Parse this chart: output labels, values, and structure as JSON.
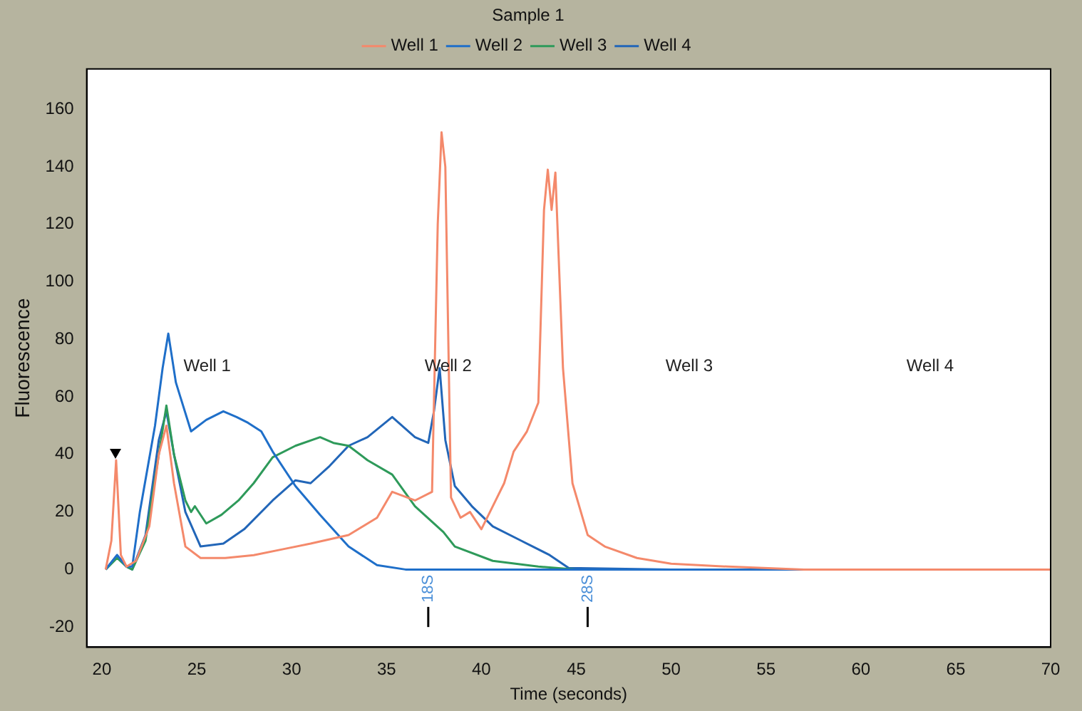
{
  "chart_data": {
    "type": "line",
    "title": "Sample 1",
    "xlabel": "Time (seconds)",
    "ylabel": "Fluorescence",
    "xlim": [
      19.2,
      70
    ],
    "xticks": [
      20,
      25,
      30,
      35,
      40,
      45,
      50,
      55,
      60,
      65,
      70
    ],
    "ylim": [
      -27,
      174
    ],
    "yticks": [
      -20,
      0,
      20,
      40,
      60,
      80,
      100,
      120,
      140,
      160
    ],
    "grid": false,
    "legend": "top",
    "marker": "none",
    "line_style": "solid",
    "series": [
      {
        "name": "Well 1",
        "color": "#f4896b",
        "x": [
          20.2,
          20.5,
          20.75,
          21.0,
          21.3,
          21.8,
          22.5,
          23.0,
          23.4,
          23.8,
          24.4,
          25.2,
          26.5,
          28,
          29.5,
          31,
          33,
          34.5,
          35.3,
          36.5,
          37.4,
          37.7,
          37.9,
          38.1,
          38.4,
          38.9,
          39.4,
          40,
          40.6,
          41.2,
          41.7,
          42.4,
          43.0,
          43.3,
          43.5,
          43.7,
          43.9,
          44.3,
          44.8,
          45.6,
          46.5,
          48.2,
          50,
          53,
          57,
          62,
          70
        ],
        "values": [
          0,
          10,
          38,
          5,
          1,
          3,
          15,
          40,
          50,
          30,
          8,
          4,
          4,
          5,
          7,
          9,
          12,
          18,
          27,
          24,
          27,
          120,
          152,
          140,
          25,
          18,
          20,
          14,
          22,
          30,
          41,
          48,
          58,
          125,
          139,
          125,
          138,
          70,
          30,
          12,
          8,
          4,
          2,
          1,
          0,
          0,
          0
        ]
      },
      {
        "name": "Well 2",
        "color": "#1f6fc9",
        "x": [
          20.2,
          20.8,
          21.3,
          21.6,
          22,
          22.8,
          23.2,
          23.5,
          23.9,
          24.7,
          25.5,
          26.4,
          27.1,
          27.7,
          28.4,
          29,
          30.2,
          31.5,
          33,
          34.5,
          36,
          40,
          50,
          60,
          70
        ],
        "values": [
          0,
          5,
          1,
          1,
          20,
          50,
          70,
          82,
          65,
          48,
          52,
          55,
          53,
          51,
          48,
          41,
          29,
          19,
          8,
          1.5,
          0,
          0,
          0,
          0,
          0
        ]
      },
      {
        "name": "Well 3",
        "color": "#2e9a5a",
        "x": [
          20.2,
          20.8,
          21.3,
          21.6,
          22.3,
          23.0,
          23.4,
          23.8,
          24.4,
          24.7,
          24.9,
          25.5,
          26.3,
          27.2,
          28,
          29,
          30.2,
          31.5,
          32.2,
          33,
          34,
          35.3,
          36.5,
          38,
          38.6,
          40.6,
          43,
          45,
          50,
          57.7
        ],
        "values": [
          0,
          4,
          1,
          0,
          10,
          40,
          57,
          40,
          24,
          20,
          22,
          16,
          19,
          24,
          30,
          39,
          43,
          46,
          44,
          43,
          38,
          33,
          22,
          13,
          8,
          3,
          1,
          0,
          0,
          0
        ]
      },
      {
        "name": "Well 4",
        "color": "#2266b8",
        "x": [
          20.2,
          20.8,
          21.3,
          21.6,
          22.3,
          23.0,
          23.4,
          23.8,
          24.4,
          25.2,
          26.4,
          27.5,
          29,
          30.2,
          31,
          32,
          33,
          34,
          35.3,
          36.5,
          37.2,
          37.5,
          37.8,
          38.1,
          38.6,
          39.5,
          40.6,
          42.1,
          43.6,
          44.6,
          50,
          60,
          70
        ],
        "values": [
          0,
          5,
          1,
          0,
          12,
          45,
          55,
          40,
          20,
          8,
          9,
          14,
          24,
          31,
          30,
          36,
          43,
          46,
          53,
          46,
          44,
          55,
          70,
          45,
          29,
          22,
          15,
          10,
          5,
          0.5,
          0,
          0,
          0
        ]
      }
    ],
    "annotations": [
      "Well 1",
      "Well 2",
      "Well 3",
      "Well 4"
    ],
    "ref_lines": [
      {
        "axis": "x",
        "value": 37.2,
        "label": "18S",
        "color": "#000000"
      },
      {
        "axis": "x",
        "value": 45.6,
        "label": "28S",
        "color": "#000000"
      }
    ]
  }
}
